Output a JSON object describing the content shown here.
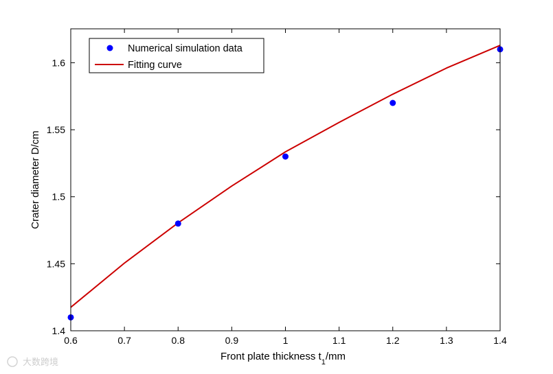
{
  "chart_data": {
    "type": "scatter",
    "title": "",
    "xlabel": "Front plate thickness t",
    "xlabel_sub": "1",
    "xlabel_unit": "/mm",
    "ylabel": "Crater diameter D/cm",
    "xlim": [
      0.6,
      1.4
    ],
    "ylim": [
      1.4,
      1.6253
    ],
    "xticks": [
      0.6,
      0.7,
      0.8,
      0.9,
      1.0,
      1.1,
      1.2,
      1.3,
      1.4
    ],
    "xtick_labels": [
      "0.6",
      "0.7",
      "0.8",
      "0.9",
      "1",
      "1.1",
      "1.2",
      "1.3",
      "1.4"
    ],
    "yticks": [
      1.4,
      1.45,
      1.5,
      1.55,
      1.6
    ],
    "ytick_labels": [
      "1.4",
      "1.45",
      "1.5",
      "1.55",
      "1.6"
    ],
    "grid": false,
    "legend_position": "top-left",
    "series": [
      {
        "name": "Numerical simulation data",
        "kind": "scatter",
        "color": "#0000ff",
        "x": [
          0.6,
          0.8,
          1.0,
          1.2,
          1.4
        ],
        "y": [
          1.41,
          1.48,
          1.53,
          1.57,
          1.61
        ]
      },
      {
        "name": "Fitting curve",
        "kind": "line",
        "color": "#cc0000",
        "x": [
          0.6,
          0.7,
          0.8,
          0.9,
          1.0,
          1.1,
          1.2,
          1.3,
          1.4
        ],
        "y": [
          1.4175,
          1.4505,
          1.4805,
          1.508,
          1.5335,
          1.5555,
          1.5765,
          1.596,
          1.613
        ]
      }
    ]
  },
  "watermark": "大数跨境"
}
